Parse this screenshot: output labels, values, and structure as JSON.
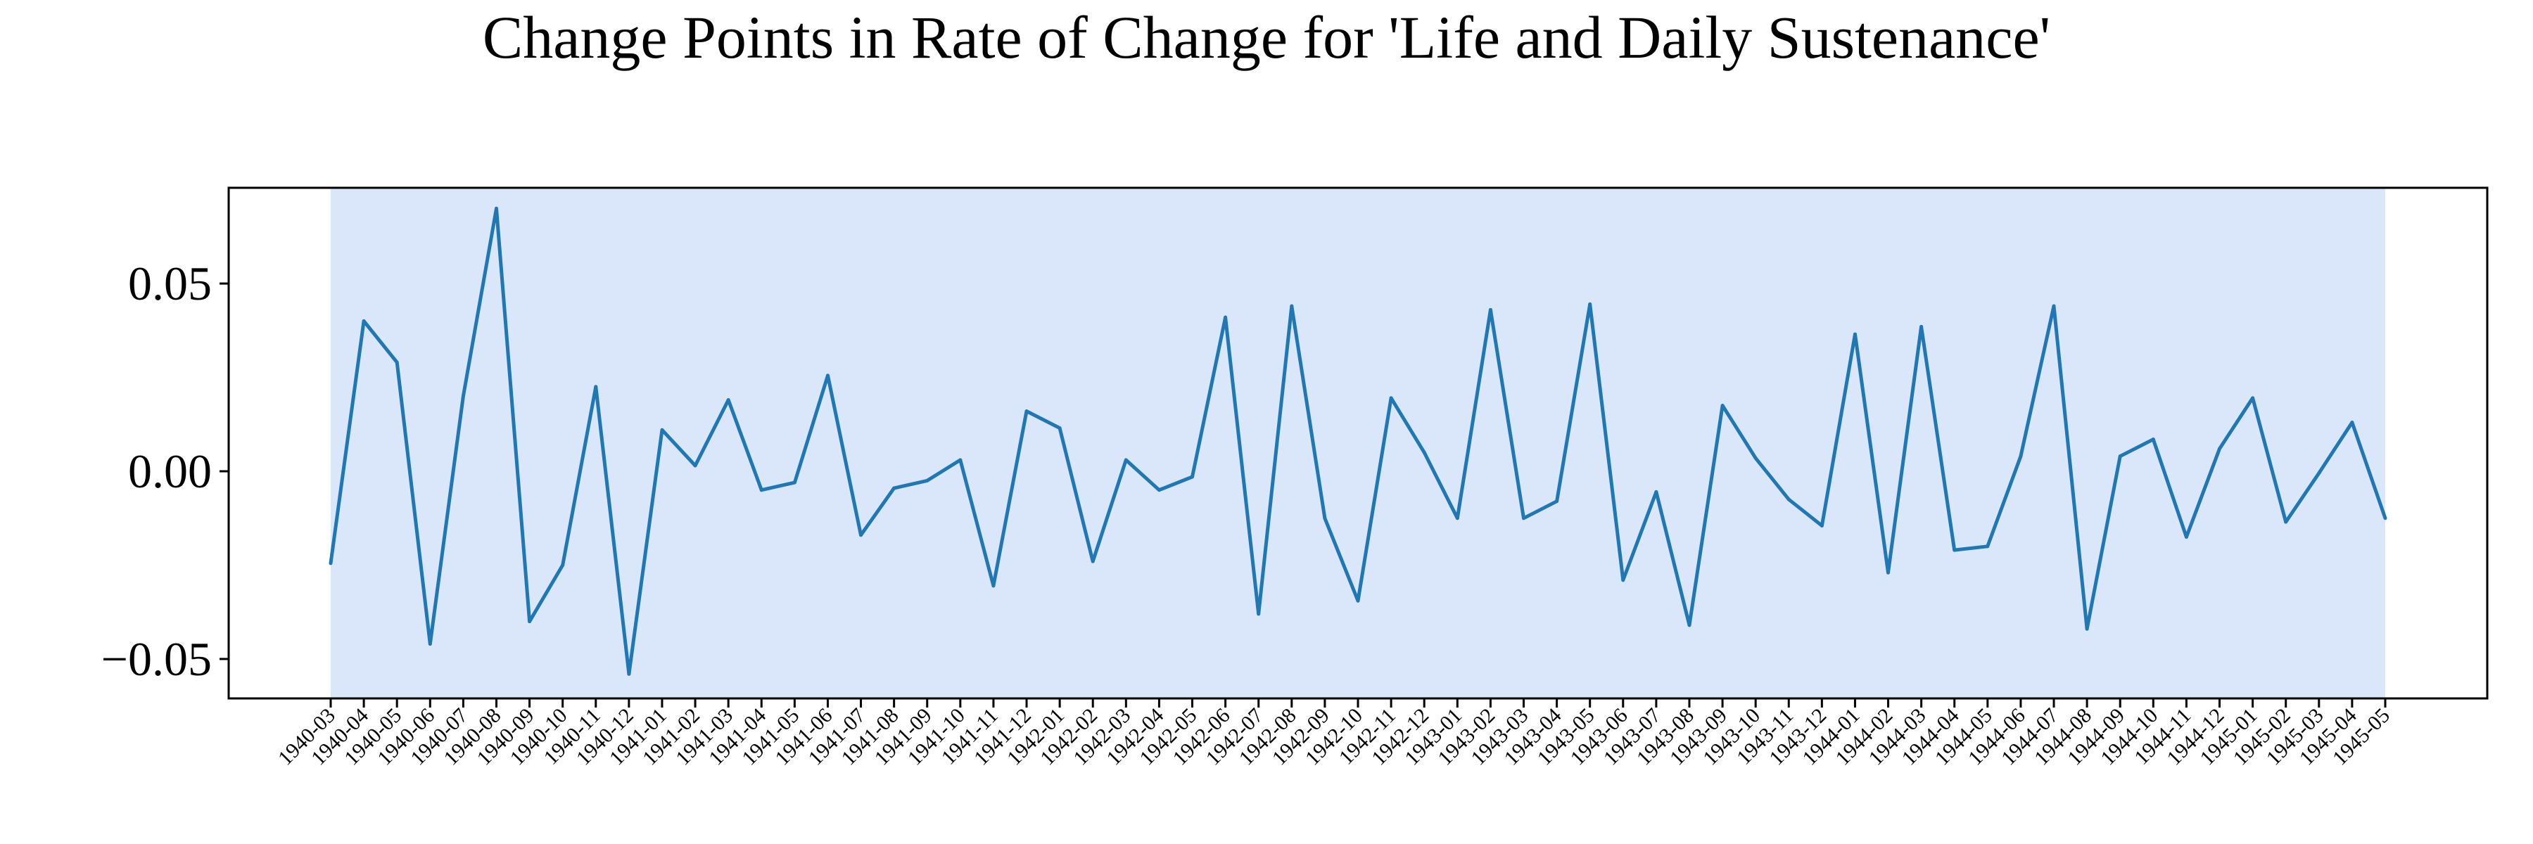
{
  "chart_data": {
    "type": "line",
    "title": "Change Points in Rate of Change for 'Life and Daily Sustenance'",
    "xlabel": "",
    "ylabel": "",
    "categories": [
      "1940-03",
      "1940-04",
      "1940-05",
      "1940-06",
      "1940-07",
      "1940-08",
      "1940-09",
      "1940-10",
      "1940-11",
      "1940-12",
      "1941-01",
      "1941-02",
      "1941-03",
      "1941-04",
      "1941-05",
      "1941-06",
      "1941-07",
      "1941-08",
      "1941-09",
      "1941-10",
      "1941-11",
      "1941-12",
      "1942-01",
      "1942-02",
      "1942-03",
      "1942-04",
      "1942-05",
      "1942-06",
      "1942-07",
      "1942-08",
      "1942-09",
      "1942-10",
      "1942-11",
      "1942-12",
      "1943-01",
      "1943-02",
      "1943-03",
      "1943-04",
      "1943-05",
      "1943-06",
      "1943-07",
      "1943-08",
      "1943-09",
      "1943-10",
      "1943-11",
      "1943-12",
      "1944-01",
      "1944-02",
      "1944-03",
      "1944-04",
      "1944-05",
      "1944-06",
      "1944-07",
      "1944-08",
      "1944-09",
      "1944-10",
      "1944-11",
      "1944-12",
      "1945-01",
      "1945-02",
      "1945-03",
      "1945-04",
      "1945-05"
    ],
    "series": [
      {
        "values": [
          -0.0245,
          0.04,
          0.029,
          -0.046,
          0.02,
          0.07,
          -0.04,
          -0.025,
          0.0225,
          -0.054,
          0.011,
          0.0015,
          0.019,
          -0.005,
          -0.003,
          0.0255,
          -0.017,
          -0.0045,
          -0.0025,
          0.003,
          -0.0305,
          0.016,
          0.0115,
          -0.024,
          0.003,
          -0.005,
          -0.0015,
          0.041,
          -0.038,
          0.044,
          -0.0125,
          -0.0345,
          0.0195,
          0.005,
          -0.0125,
          0.043,
          -0.0125,
          -0.008,
          0.0445,
          -0.029,
          -0.0055,
          -0.041,
          0.0175,
          0.0035,
          -0.0075,
          -0.0145,
          0.0365,
          -0.027,
          0.0385,
          -0.021,
          -0.02,
          0.004,
          0.044,
          -0.042,
          0.004,
          0.0085,
          -0.0175,
          0.006,
          0.0195,
          -0.0135,
          -0.0005,
          0.013,
          -0.0125
        ]
      }
    ],
    "ylim": [
      -0.0605,
      0.0755
    ],
    "yticks": [
      -0.05,
      0.0,
      0.05
    ],
    "ytick_labels": [
      "−0.05",
      "0.00",
      "0.05"
    ],
    "grid": false,
    "line_color": "#1f77b4",
    "highlight_region": {
      "from": "1940-03",
      "to": "1945-05",
      "color": "#dae6fa"
    }
  }
}
